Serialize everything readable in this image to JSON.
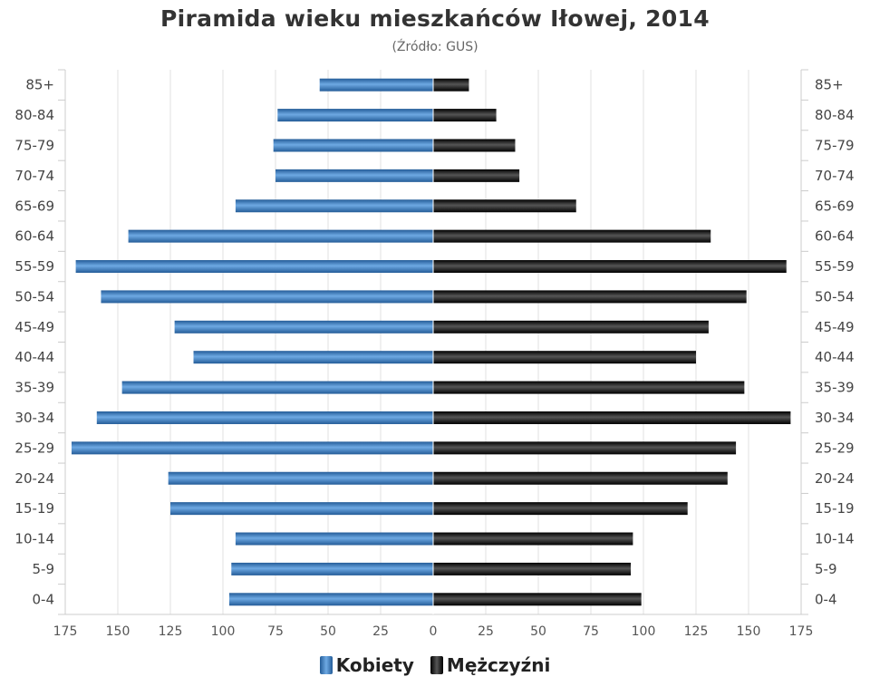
{
  "title": "Piramida wieku mieszkańców Iłowej, 2014",
  "subtitle": "(Źródło: GUS)",
  "legend": {
    "female": "Kobiety",
    "male": "Mężczyźni"
  },
  "colors": {
    "female_dark": "#245c98",
    "female_light": "#6ea9e3",
    "male_dark": "#000000",
    "male_light": "#555555"
  },
  "chart_data": {
    "type": "bar",
    "orientation": "horizontal",
    "categories": [
      "85+",
      "80-84",
      "75-79",
      "70-74",
      "65-69",
      "60-64",
      "55-59",
      "50-54",
      "45-49",
      "40-44",
      "35-39",
      "30-34",
      "25-29",
      "20-24",
      "15-19",
      "10-14",
      "5-9",
      "0-4"
    ],
    "series": [
      {
        "name": "Kobiety",
        "values": [
          54,
          74,
          76,
          75,
          94,
          145,
          170,
          158,
          123,
          114,
          148,
          160,
          172,
          126,
          125,
          94,
          96,
          97
        ]
      },
      {
        "name": "Mężczyźni",
        "values": [
          17,
          30,
          39,
          41,
          68,
          132,
          168,
          149,
          131,
          125,
          148,
          170,
          144,
          140,
          121,
          95,
          94,
          99
        ]
      }
    ],
    "xticks": [
      "175",
      "150",
      "125",
      "100",
      "75",
      "50",
      "25",
      "0",
      "25",
      "50",
      "75",
      "100",
      "125",
      "150",
      "175"
    ],
    "xlim": [
      -175,
      175
    ],
    "grid": true,
    "legend_position": "bottom"
  }
}
